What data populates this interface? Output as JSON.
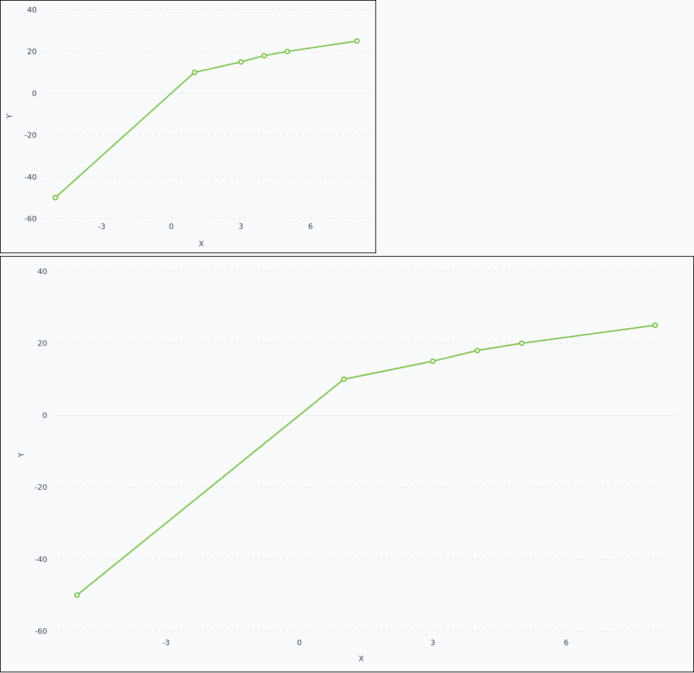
{
  "colors": {
    "series": "#7cbf4a",
    "tick_text": "#3a4256",
    "grid": "#e4e8ee",
    "background": "#f8fafb"
  },
  "chart_data": [
    {
      "type": "line",
      "title": "",
      "xlabel": "X",
      "ylabel": "Y",
      "x": [
        -5,
        1,
        3,
        4,
        5,
        8
      ],
      "series": [
        {
          "values": [
            -50,
            10,
            15,
            18,
            20,
            25
          ]
        }
      ],
      "xlim": [
        -5.5,
        8.5
      ],
      "ylim": [
        -62,
        40
      ],
      "xticks": [
        -3,
        0,
        3,
        6
      ],
      "yticks": [
        -60,
        -40,
        -20,
        0,
        20,
        40
      ],
      "grid": true,
      "markers": "hollow-circle"
    },
    {
      "type": "line",
      "title": "",
      "xlabel": "X",
      "ylabel": "Y",
      "x": [
        -5,
        1,
        3,
        4,
        5,
        8
      ],
      "series": [
        {
          "values": [
            -50,
            10,
            15,
            18,
            20,
            25
          ]
        }
      ],
      "xlim": [
        -5.5,
        8.5
      ],
      "ylim": [
        -62,
        40
      ],
      "xticks": [
        -3,
        0,
        3,
        6
      ],
      "yticks": [
        -60,
        -40,
        -20,
        0,
        20,
        40
      ],
      "grid": true,
      "markers": "hollow-circle"
    }
  ]
}
